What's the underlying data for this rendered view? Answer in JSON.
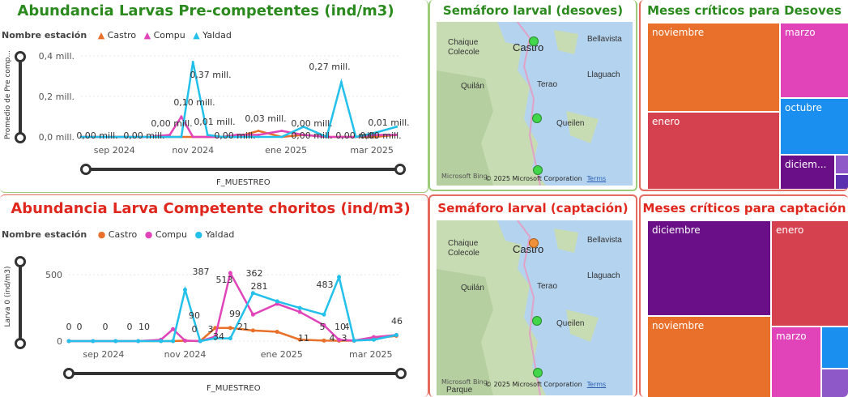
{
  "colors": {
    "castro": "#e8702a",
    "compu": "#e044b8",
    "yaldad": "#22c0ea",
    "green_title": "#2b8a1e",
    "red_title": "#e0271e"
  },
  "chart1": {
    "title": "Abundancia Larvas Pre-competentes (ind/m3)",
    "legend_title": "Nombre estación",
    "legend": [
      "Castro",
      "Compu",
      "Yaldad"
    ],
    "ylabel": "Promedio de Pre comp...",
    "xlabel": "F_MUESTREO",
    "yticks": [
      "0,4 mill.",
      "0,2 mill.",
      "0,0 mill."
    ],
    "xticks": [
      "sep 2024",
      "nov 2024",
      "ene 2025",
      "mar 2025"
    ],
    "labels": [
      "0,00 mill.",
      "0,00 mill.",
      "0,00 mill.",
      "0,10 mill.",
      "0,37 mill.",
      "0,01 mill.",
      "0,00 mill.",
      "0,03 mill.",
      "0,00 mill.",
      "0,00 mill.",
      "0,27 mill.",
      "0,00 mill.",
      "0,00 mill.",
      "0,01 mill."
    ]
  },
  "chart2": {
    "title": "Abundancia Larva Competente choritos (ind/m3)",
    "legend_title": "Nombre estación",
    "legend": [
      "Castro",
      "Compu",
      "Yaldad"
    ],
    "ylabel": "Larva 0 (ind/m3)",
    "xlabel": "F_MUESTREO",
    "yticks": [
      "500",
      "0"
    ],
    "xticks": [
      "sep 2024",
      "nov 2024",
      "ene 2025",
      "mar 2025"
    ],
    "labels": [
      "0",
      "0",
      "0",
      "0",
      "10",
      "90",
      "387",
      "0",
      "3",
      "34",
      "513",
      "99",
      "21",
      "362",
      "281",
      "11",
      "5",
      "483",
      "4",
      "10",
      "4",
      "3",
      "46"
    ]
  },
  "chart_data": [
    {
      "type": "line",
      "title": "Abundancia Larvas Pre-competentes (ind/m3)",
      "xlabel": "F_MUESTREO",
      "ylabel": "Promedio de Pre comp...",
      "ylim": [
        0,
        0.4
      ],
      "x": [
        "2024-08-20",
        "2024-09-05",
        "2024-09-20",
        "2024-10-05",
        "2024-10-20",
        "2024-10-28",
        "2024-11-05",
        "2024-11-15",
        "2024-11-25",
        "2024-12-05",
        "2024-12-20",
        "2025-01-05",
        "2025-01-20",
        "2025-02-05",
        "2025-02-15",
        "2025-02-25",
        "2025-03-10",
        "2025-03-25"
      ],
      "series": [
        {
          "name": "Castro",
          "values": [
            0,
            0,
            0,
            0,
            0,
            0,
            0,
            0,
            0,
            0,
            0.03,
            0,
            0.01,
            0,
            0,
            0,
            0,
            0.01
          ]
        },
        {
          "name": "Compu",
          "values": [
            0,
            0,
            0,
            0,
            0.01,
            0.1,
            0,
            0,
            0,
            0.01,
            0.01,
            0.03,
            0.01,
            0,
            0,
            0,
            0.01,
            0.01
          ]
        },
        {
          "name": "Yaldad",
          "values": [
            0,
            0,
            0,
            0,
            0,
            0,
            0.37,
            0.01,
            0,
            0,
            0,
            0,
            0.05,
            0,
            0.27,
            0,
            0.02,
            0.05
          ]
        }
      ]
    },
    {
      "type": "line",
      "title": "Abundancia Larva Competente choritos (ind/m3)",
      "xlabel": "F_MUESTREO",
      "ylabel": "Larva 0 (ind/m3)",
      "ylim": [
        0,
        550
      ],
      "x": [
        "2024-08-20",
        "2024-09-05",
        "2024-09-20",
        "2024-10-05",
        "2024-10-20",
        "2024-10-28",
        "2024-11-05",
        "2024-11-15",
        "2024-11-25",
        "2024-12-05",
        "2024-12-20",
        "2025-01-05",
        "2025-01-20",
        "2025-02-05",
        "2025-02-15",
        "2025-02-25",
        "2025-03-10",
        "2025-03-25"
      ],
      "series": [
        {
          "name": "Castro",
          "values": [
            0,
            0,
            0,
            0,
            0,
            0,
            3,
            0,
            99,
            99,
            80,
            70,
            11,
            4,
            3,
            3,
            20,
            40
          ]
        },
        {
          "name": "Compu",
          "values": [
            0,
            0,
            0,
            0,
            10,
            90,
            3,
            0,
            34,
            513,
            200,
            281,
            220,
            120,
            10,
            4,
            30,
            46
          ]
        },
        {
          "name": "Yaldad",
          "values": [
            0,
            0,
            0,
            0,
            0,
            0,
            387,
            0,
            21,
            21,
            362,
            300,
            250,
            200,
            483,
            4,
            10,
            46
          ]
        }
      ]
    },
    {
      "type": "treemap",
      "title": "Meses críticos para Desoves",
      "categories": [
        "noviembre",
        "enero",
        "marzo",
        "octubre",
        "diciem..."
      ]
    },
    {
      "type": "treemap",
      "title": "Meses críticos para captación",
      "categories": [
        "diciembre",
        "enero",
        "noviembre",
        "marzo"
      ]
    }
  ],
  "map1": {
    "title": "Semáforo larval (desoves)",
    "places": [
      "Chaique",
      "Colecole",
      "Castro",
      "Bellavista",
      "Llaguach",
      "Quilán",
      "Terao",
      "Queilen"
    ],
    "copyright": "© 2025 Microsoft Corporation",
    "terms": "Terms",
    "logo": "Microsoft Bing",
    "markers": [
      "green",
      "green",
      "green"
    ]
  },
  "map2": {
    "title": "Semáforo larval (captación)",
    "places": [
      "Chaique",
      "Colecole",
      "Castro",
      "Bellavista",
      "Llaguach",
      "Quilán",
      "Terao",
      "Queilen",
      "Parque"
    ],
    "copyright": "© 2025 Microsoft Corporation",
    "terms": "Terms",
    "logo": "Microsoft Bing",
    "markers": [
      "orange",
      "green",
      "green"
    ]
  },
  "treemap1": {
    "title": "Meses críticos para Desoves",
    "tiles": [
      "noviembre",
      "marzo",
      "enero",
      "octubre",
      "diciem..."
    ]
  },
  "treemap2": {
    "title": "Meses críticos para captación",
    "tiles": [
      "diciembre",
      "enero",
      "noviembre",
      "marzo"
    ]
  }
}
